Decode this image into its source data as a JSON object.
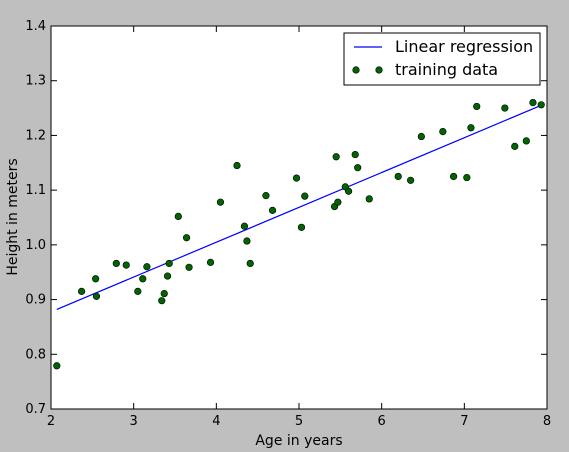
{
  "chart_data": {
    "type": "scatter",
    "title": "",
    "xlabel": "Age in years",
    "ylabel": "Height in meters",
    "xlim": [
      2,
      8
    ],
    "ylim": [
      0.7,
      1.4
    ],
    "xticks": [
      2,
      3,
      4,
      5,
      6,
      7,
      8
    ],
    "yticks": [
      0.7,
      0.8,
      0.9,
      1.0,
      1.1,
      1.2,
      1.3,
      1.4
    ],
    "xtick_labels": [
      "2",
      "3",
      "4",
      "5",
      "6",
      "7",
      "8"
    ],
    "ytick_labels": [
      "0.7",
      "0.8",
      "0.9",
      "1.0",
      "1.1",
      "1.2",
      "1.3",
      "1.4"
    ],
    "legend_position": "top-right",
    "colors": {
      "line": "#0000ff",
      "points": "#006400",
      "background": "#bfbfbf",
      "plot": "#ffffff"
    },
    "series": [
      {
        "name": "Linear regression",
        "kind": "line",
        "x": [
          2.07,
          7.93
        ],
        "y": [
          0.882,
          1.255
        ]
      },
      {
        "name": "training data",
        "kind": "scatter",
        "x": [
          2.07,
          2.37,
          2.54,
          2.55,
          2.79,
          2.91,
          3.05,
          3.11,
          3.16,
          3.34,
          3.37,
          3.41,
          3.43,
          3.54,
          3.64,
          3.67,
          3.93,
          4.05,
          4.25,
          4.34,
          4.37,
          4.41,
          4.6,
          4.68,
          4.97,
          5.03,
          5.07,
          5.43,
          5.45,
          5.47,
          5.56,
          5.6,
          5.68,
          5.71,
          5.85,
          6.2,
          6.35,
          6.48,
          6.74,
          6.87,
          7.03,
          7.08,
          7.15,
          7.49,
          7.61,
          7.75,
          7.83,
          7.93
        ],
        "y": [
          0.779,
          0.915,
          0.938,
          0.906,
          0.966,
          0.963,
          0.915,
          0.938,
          0.96,
          0.898,
          0.911,
          0.943,
          0.966,
          1.052,
          1.013,
          0.959,
          0.968,
          1.078,
          1.145,
          1.034,
          1.007,
          0.966,
          1.09,
          1.063,
          1.122,
          1.032,
          1.089,
          1.07,
          1.161,
          1.078,
          1.106,
          1.098,
          1.165,
          1.141,
          1.084,
          1.125,
          1.118,
          1.198,
          1.207,
          1.125,
          1.123,
          1.214,
          1.253,
          1.25,
          1.18,
          1.19,
          1.26,
          1.256
        ]
      }
    ]
  }
}
